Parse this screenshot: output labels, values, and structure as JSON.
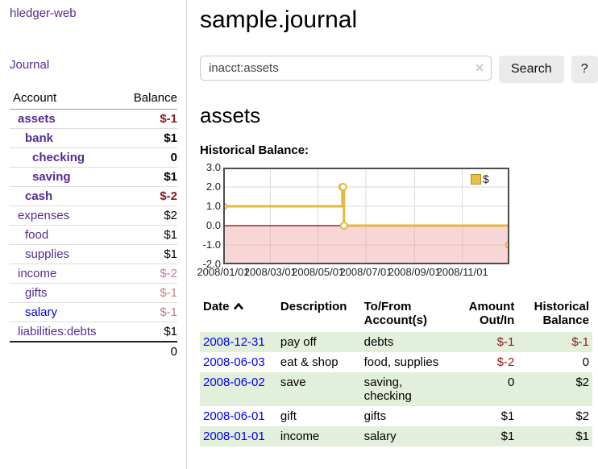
{
  "sidebar": {
    "brand": "hledger-web",
    "nav": {
      "journal": "Journal"
    },
    "table": {
      "account_header": "Account",
      "balance_header": "Balance",
      "accounts": [
        {
          "name": "assets",
          "balance": "$-1"
        },
        {
          "name": "bank",
          "balance": "$1"
        },
        {
          "name": "checking",
          "balance": "0"
        },
        {
          "name": "saving",
          "balance": "$1"
        },
        {
          "name": "cash",
          "balance": "$-2"
        },
        {
          "name": "expenses",
          "balance": "$2"
        },
        {
          "name": "food",
          "balance": "$1"
        },
        {
          "name": "supplies",
          "balance": "$1"
        },
        {
          "name": "income",
          "balance": "$-2"
        },
        {
          "name": "gifts",
          "balance": "$-1"
        },
        {
          "name": "salary",
          "balance": "$-1"
        },
        {
          "name": "liabilities:debts",
          "balance": "$1"
        }
      ],
      "total": "0"
    }
  },
  "header": {
    "title": "sample.journal"
  },
  "search": {
    "value": "inacct:assets",
    "clear_icon": "✕",
    "button_label": "Search",
    "help_label": "?"
  },
  "account_page": {
    "title": "assets",
    "chart_heading": "Historical Balance:"
  },
  "chart_data": {
    "type": "line",
    "step": "after",
    "series": [
      {
        "name": "$",
        "points": [
          [
            "2008-01-01",
            1
          ],
          [
            "2008-06-01",
            2
          ],
          [
            "2008-06-02",
            2
          ],
          [
            "2008-06-03",
            0
          ],
          [
            "2008-12-31",
            -1
          ]
        ]
      }
    ],
    "xlim": [
      "2008-01-01",
      "2008-12-31"
    ],
    "ylim": [
      -2,
      3
    ],
    "x_ticks": [
      {
        "label": "2008/01/01",
        "date": "2008-01-01"
      },
      {
        "label": "2008/03/01",
        "date": "2008-03-01"
      },
      {
        "label": "2008/05/01",
        "date": "2008-05-01"
      },
      {
        "label": "2008/07/01",
        "date": "2008-07-01"
      },
      {
        "label": "2008/09/01",
        "date": "2008-09-01"
      },
      {
        "label": "2008/11/01",
        "date": "2008-11-01"
      }
    ],
    "y_ticks": [
      {
        "label": "3.0",
        "value": 3
      },
      {
        "label": "2.0",
        "value": 2
      },
      {
        "label": "1.0",
        "value": 1
      },
      {
        "label": "0.0",
        "value": 0
      },
      {
        "label": "-1.0",
        "value": -1
      },
      {
        "label": "-2.0",
        "value": -2
      }
    ],
    "grid": true,
    "legend_position": "top-right",
    "negative_region": true
  },
  "register_table": {
    "headers": {
      "date": "Date",
      "description": "Description",
      "tofrom": "To/From\nAccount(s)",
      "amount": "Amount\nOut/In",
      "balance": "Historical\nBalance"
    },
    "rows": [
      {
        "date": "2008-12-31",
        "description": "pay off",
        "tofrom": "debts",
        "amount": "$-1",
        "balance": "$-1"
      },
      {
        "date": "2008-06-03",
        "description": "eat & shop",
        "tofrom": "food, supplies",
        "amount": "$-2",
        "balance": "0"
      },
      {
        "date": "2008-06-02",
        "description": "save",
        "tofrom": "saving,\nchecking",
        "amount": "0",
        "balance": "$2"
      },
      {
        "date": "2008-06-01",
        "description": "gift",
        "tofrom": "gifts",
        "amount": "$1",
        "balance": "$2"
      },
      {
        "date": "2008-01-01",
        "description": "income",
        "tofrom": "salary",
        "amount": "$1",
        "balance": "$1"
      }
    ]
  },
  "colors": {
    "link_purple": "#552a94",
    "link_blue": "#0000e6",
    "negative_red": "#8b1a1a",
    "negative_faded": "#c4808a",
    "row_stripe_green": "#e2efdb",
    "chart_line_gold": "#e3b83e",
    "chart_negative_fill": "#f8d3d3",
    "chart_zero_line": "#8b0000",
    "chart_grid": "#d8d8d8",
    "chart_border": "#4c4c4c"
  }
}
